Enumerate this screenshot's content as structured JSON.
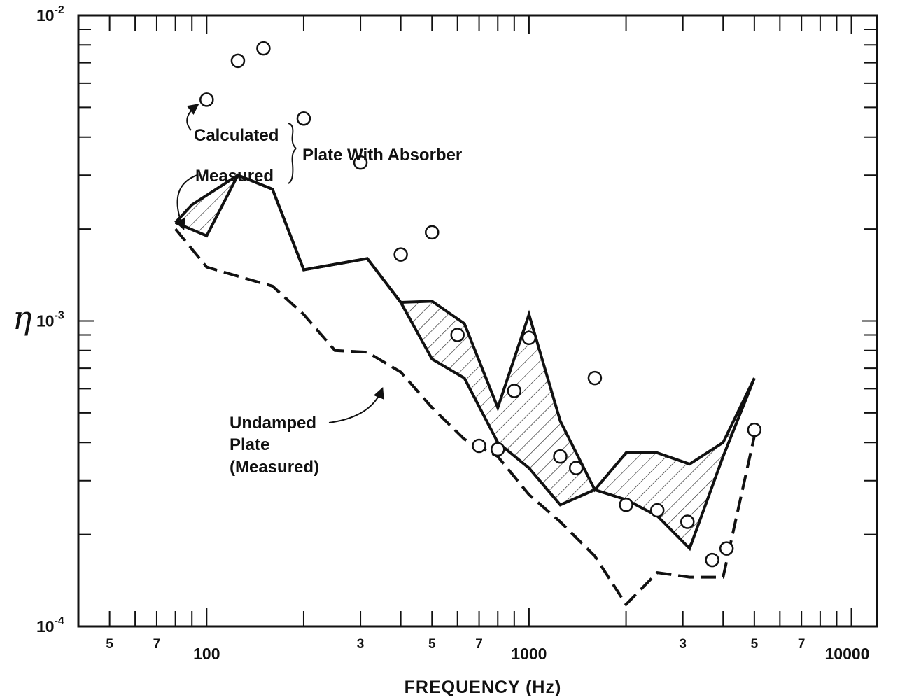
{
  "chart_data": {
    "type": "line",
    "title": "",
    "xlabel": "FREQUENCY (Hz)",
    "ylabel": "η",
    "x_scale": "log",
    "y_scale": "log",
    "xlim": [
      40,
      12000
    ],
    "ylim": [
      0.0001,
      0.01
    ],
    "grid": false,
    "x_tick_labels": [
      {
        "x": 50,
        "label": "5"
      },
      {
        "x": 70,
        "label": "7"
      },
      {
        "x": 100,
        "label": "100"
      },
      {
        "x": 300,
        "label": "3"
      },
      {
        "x": 500,
        "label": "5"
      },
      {
        "x": 700,
        "label": "7"
      },
      {
        "x": 1000,
        "label": "1000"
      },
      {
        "x": 3000,
        "label": "3"
      },
      {
        "x": 5000,
        "label": "5"
      },
      {
        "x": 7000,
        "label": "7"
      },
      {
        "x": 10000,
        "label": "10000"
      }
    ],
    "y_tick_labels": [
      {
        "y": 0.0001,
        "base": "10",
        "exp": "-4"
      },
      {
        "y": 0.001,
        "base": "10",
        "exp": "-3"
      },
      {
        "y": 0.01,
        "base": "10",
        "exp": "-2"
      }
    ],
    "series": [
      {
        "name": "Calculated",
        "style": "open-circle markers",
        "x": [
          100,
          125,
          150,
          200,
          300,
          400,
          500,
          600,
          700,
          800,
          900,
          1000,
          1250,
          1400,
          1600,
          2000,
          2500,
          3100,
          3700,
          4100,
          5000
        ],
        "y": [
          0.0053,
          0.0071,
          0.0078,
          0.0046,
          0.0033,
          0.00165,
          0.00195,
          0.0009,
          0.00039,
          0.00038,
          0.00059,
          0.00088,
          0.00036,
          0.00033,
          0.00065,
          0.00025,
          0.00024,
          0.00022,
          0.000165,
          0.00018,
          0.00044
        ]
      },
      {
        "name": "Measured upper bound (Plate With Absorber)",
        "style": "solid",
        "x": [
          80,
          90,
          125,
          160,
          200,
          315,
          400,
          500,
          630,
          800,
          1000,
          1250,
          1600,
          2000,
          2500,
          3150,
          4000,
          5000
        ],
        "y": [
          0.0021,
          0.0024,
          0.003,
          0.0027,
          0.00147,
          0.0016,
          0.00115,
          0.00116,
          0.00098,
          0.00052,
          0.00105,
          0.00047,
          0.00028,
          0.00037,
          0.00037,
          0.00034,
          0.0004,
          0.00065
        ]
      },
      {
        "name": "Measured lower bound (Plate With Absorber)",
        "style": "solid",
        "x": [
          80,
          100,
          125,
          160,
          200,
          315,
          400,
          500,
          630,
          800,
          1000,
          1250,
          1600,
          2000,
          2500,
          3150,
          4000,
          5000
        ],
        "y": [
          0.0021,
          0.0019,
          0.003,
          0.0027,
          0.00147,
          0.0016,
          0.00115,
          0.00075,
          0.00065,
          0.0004,
          0.00033,
          0.00025,
          0.00028,
          0.00026,
          0.00023,
          0.00018,
          0.00036,
          0.00065
        ]
      },
      {
        "name": "Undamped Plate (Measured)",
        "style": "dashed",
        "x": [
          80,
          100,
          125,
          160,
          200,
          250,
          315,
          400,
          500,
          630,
          800,
          1000,
          1250,
          1600,
          2000,
          2500,
          3150,
          4000,
          5000
        ],
        "y": [
          0.002,
          0.0015,
          0.0014,
          0.0013,
          0.00105,
          0.0008,
          0.00079,
          0.00068,
          0.00052,
          0.00041,
          0.00036,
          0.00027,
          0.00022,
          0.00017,
          0.000118,
          0.00015,
          0.000145,
          0.000145,
          0.00042
        ]
      }
    ],
    "annotations": {
      "calculated": "Calculated",
      "measured": "Measured",
      "plate_with_absorber": "Plate With Absorber",
      "undamped_1": "Undamped",
      "undamped_2": "Plate",
      "undamped_3": "(Measured)"
    }
  }
}
